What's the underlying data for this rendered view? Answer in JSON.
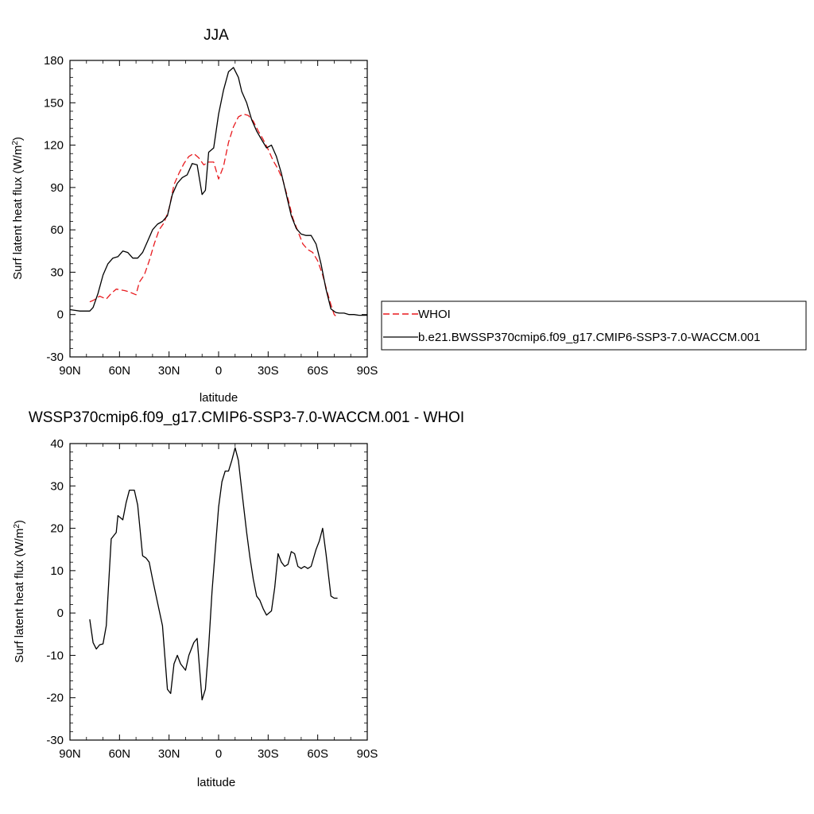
{
  "chart_data": [
    {
      "type": "line",
      "title": "JJA",
      "xlabel": "latitude",
      "ylabel": "Surf latent heat flux (W/m",
      "ylabel_sup": "2",
      "ylabel_close": ")",
      "xlim": [
        -90,
        90
      ],
      "ylim": [
        -30,
        180
      ],
      "x_ticks": [
        -90,
        -60,
        -30,
        0,
        30,
        60,
        90
      ],
      "x_tick_labels": [
        "90N",
        "60N",
        "30N",
        "0",
        "30S",
        "60S",
        "90S"
      ],
      "y_ticks": [
        -30,
        0,
        30,
        60,
        90,
        120,
        150,
        180
      ],
      "y_tick_labels": [
        "-30",
        "0",
        "30",
        "60",
        "90",
        "120",
        "150",
        "180"
      ],
      "grid": false,
      "legend_position": "right",
      "series": [
        {
          "name": "WHOI",
          "color": "#e8191d",
          "dash": "dashed",
          "x": [
            -78,
            -76,
            -72,
            -68,
            -65,
            -62,
            -57,
            -54,
            -50,
            -48,
            -45,
            -42,
            -39,
            -36,
            -33,
            -30,
            -27,
            -24,
            -21,
            -18,
            -15,
            -12,
            -9,
            -6,
            -3,
            0,
            3,
            6,
            9,
            12,
            15,
            18,
            21,
            24,
            27,
            30,
            33,
            36,
            39,
            42,
            45,
            48,
            51,
            54,
            57,
            60,
            63,
            66,
            68,
            70,
            72
          ],
          "y": [
            9,
            10,
            13,
            11,
            15,
            18,
            17,
            16,
            14,
            23,
            28,
            38,
            50,
            60,
            65,
            75,
            92,
            100,
            107,
            112,
            114,
            111,
            106,
            108,
            108,
            96,
            105,
            122,
            133,
            140,
            142,
            141,
            137,
            130,
            124,
            117,
            109,
            103,
            95,
            82,
            68,
            59,
            50,
            46,
            44,
            38,
            28,
            15,
            7,
            0,
            -2
          ]
        },
        {
          "name": "b.e21.BWSSP370cmip6.f09_g17.CMIP6-SSP3-7.0-WACCM.001",
          "color": "#000000",
          "dash": "solid",
          "x": [
            -90,
            -87,
            -84,
            -81,
            -78,
            -76,
            -73,
            -70,
            -67,
            -64,
            -61,
            -58,
            -55,
            -52,
            -49,
            -46,
            -43,
            -40,
            -37,
            -34,
            -31,
            -28,
            -25,
            -22,
            -19,
            -16,
            -13,
            -10,
            -8,
            -6,
            -3,
            0,
            3,
            6,
            9,
            12,
            14,
            17,
            20,
            23,
            26,
            29,
            32,
            35,
            38,
            41,
            44,
            47,
            50,
            53,
            56,
            59,
            62,
            65,
            68,
            71,
            73,
            76,
            79,
            82,
            85,
            88,
            90
          ],
          "y": [
            3.5,
            3,
            2.5,
            2.5,
            2.5,
            5,
            15,
            28,
            36,
            40,
            41,
            45,
            44,
            40,
            40,
            44,
            52,
            60,
            64,
            66,
            70,
            85,
            93,
            97,
            99,
            107,
            106,
            85,
            88,
            115,
            118,
            142,
            159,
            172,
            175,
            168,
            158,
            150,
            138,
            130,
            124,
            118,
            120,
            112,
            100,
            85,
            70,
            61,
            57,
            56,
            56,
            50,
            36,
            18,
            4,
            1.5,
            1,
            1,
            0,
            0,
            -0.5,
            -0.5,
            -0.5
          ]
        }
      ]
    },
    {
      "type": "line",
      "title": "WSSP370cmip6.f09_g17.CMIP6-SSP3-7.0-WACCM.001 - WHOI",
      "xlabel": "latitude",
      "ylabel": "Surf latent heat flux (W/m",
      "ylabel_sup": "2",
      "ylabel_close": ")",
      "xlim": [
        -90,
        90
      ],
      "ylim": [
        -30,
        40
      ],
      "x_ticks": [
        -90,
        -60,
        -30,
        0,
        30,
        60,
        90
      ],
      "x_tick_labels": [
        "90N",
        "60N",
        "30N",
        "0",
        "30S",
        "60S",
        "90S"
      ],
      "y_ticks": [
        -30,
        -20,
        -10,
        0,
        10,
        20,
        30,
        40
      ],
      "y_tick_labels": [
        "-30",
        "-20",
        "-10",
        "0",
        "10",
        "20",
        "30",
        "40"
      ],
      "grid": false,
      "series": [
        {
          "color": "#000000",
          "dash": "solid",
          "x": [
            -78,
            -76,
            -74,
            -72,
            -70,
            -68,
            -65,
            -62,
            -61,
            -58,
            -56,
            -54,
            -51,
            -49,
            -46,
            -44,
            -42,
            -40,
            -37,
            -34,
            -31,
            -29,
            -27,
            -25,
            -23,
            -20,
            -18,
            -15,
            -13,
            -10,
            -8,
            -6,
            -4,
            0,
            2,
            4,
            6,
            8,
            10,
            12,
            14,
            17,
            19,
            21,
            23,
            25,
            27,
            29,
            32,
            34,
            36,
            38,
            40,
            42,
            44,
            46,
            48,
            50,
            52,
            54,
            56,
            59,
            61,
            63,
            65,
            68,
            70,
            72
          ],
          "y": [
            -1.5,
            -7,
            -8.5,
            -7.5,
            -7.3,
            -3,
            17.5,
            19,
            23,
            22,
            26,
            29,
            29,
            25.5,
            13.5,
            13,
            12,
            8,
            2.5,
            -3,
            -18,
            -19,
            -12,
            -10,
            -12,
            -13.5,
            -10,
            -7,
            -6,
            -20.5,
            -18,
            -8,
            5,
            25,
            31,
            33.5,
            33.5,
            36,
            39,
            36,
            29,
            19,
            13,
            8,
            4,
            3,
            1,
            -0.5,
            0.5,
            6,
            14,
            12,
            11,
            11.5,
            14.5,
            14,
            11,
            10.5,
            11,
            10.5,
            11,
            15,
            17,
            20,
            14,
            4,
            3.5,
            3.5
          ]
        }
      ]
    }
  ]
}
